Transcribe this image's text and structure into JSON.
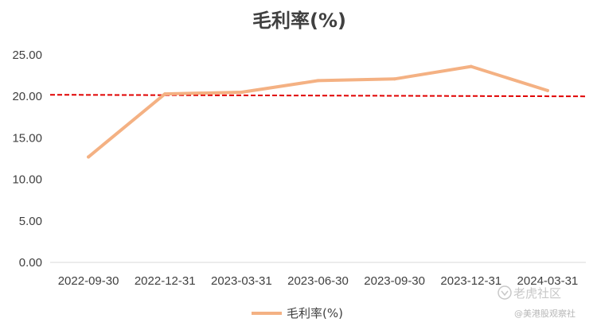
{
  "colors": {
    "series": "#F4B183",
    "reference": "#E00000",
    "grid": "#D9D9D9",
    "text": "#404040",
    "watermark": "#C8C8C8"
  },
  "watermark": {
    "brand": "老虎社区",
    "account": "@美港股观察社"
  },
  "chart_data": {
    "type": "line",
    "title": "毛利率(%)",
    "xlabel": "",
    "ylabel": "",
    "categories": [
      "2022-09-30",
      "2022-12-31",
      "2023-03-31",
      "2023-06-30",
      "2023-09-30",
      "2023-12-31",
      "2024-03-31"
    ],
    "series": [
      {
        "name": "毛利率(%)",
        "values": [
          12.7,
          20.3,
          20.5,
          21.9,
          22.1,
          23.6,
          20.7
        ]
      }
    ],
    "reference_line": {
      "y": 20.0,
      "style": "dashed"
    },
    "ylim": [
      0,
      25
    ],
    "yticks": [
      "0.00",
      "5.00",
      "10.00",
      "15.00",
      "20.00",
      "25.00"
    ],
    "ytick_values": [
      0,
      5,
      10,
      15,
      20,
      25
    ],
    "grid": false,
    "legend_position": "bottom"
  }
}
